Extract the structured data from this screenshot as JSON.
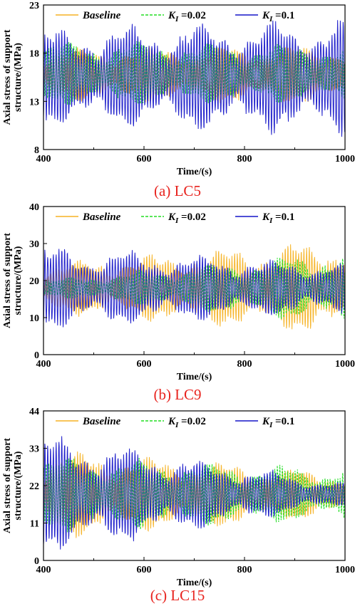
{
  "chart_data": [
    {
      "type": "line",
      "caption": "(a) LC5",
      "xlabel": "Time/(s)",
      "ylabel": [
        "Axial stress of support",
        "structure/(MPa)"
      ],
      "xlim": [
        400,
        1000
      ],
      "ylim": [
        8,
        23
      ],
      "xticks": [
        "400",
        "600",
        "800",
        "1000"
      ],
      "yticks": [
        "8",
        "13",
        "18",
        "23"
      ],
      "legend_position": "top",
      "series": [
        {
          "name": "Baseline",
          "color": "#F5B223",
          "dash": "solid",
          "mean": 15.8,
          "amp_start": 2.5,
          "amp_end": 2.8,
          "period": 5.3,
          "phase": 0.0
        },
        {
          "name": "K_I=0.02",
          "color": "#22DD22",
          "dash": "dashed",
          "mean": 15.9,
          "amp_start": 3.0,
          "amp_end": 2.7,
          "period": 5.0,
          "phase": 1.1
        },
        {
          "name": "K_I=0.1",
          "color": "#1515C8",
          "dash": "solid",
          "mean": 15.5,
          "amp_start": 4.5,
          "amp_end": 5.5,
          "period": 5.6,
          "phase": 2.0
        }
      ]
    },
    {
      "type": "line",
      "caption": "(b) LC9",
      "xlabel": "Time/(s)",
      "ylabel": [
        "Axial stress of support",
        "structure/(MPa)"
      ],
      "xlim": [
        400,
        1000
      ],
      "ylim": [
        0,
        40
      ],
      "xticks": [
        "400",
        "600",
        "800",
        "1000"
      ],
      "yticks": [
        "0",
        "10",
        "20",
        "30",
        "40"
      ],
      "legend_position": "top",
      "series": [
        {
          "name": "Baseline",
          "color": "#F5B223",
          "dash": "solid",
          "mean": 18.0,
          "amp_start": 6.0,
          "amp_end": 12.0,
          "period": 5.3,
          "phase": 0.0
        },
        {
          "name": "K_I=0.02",
          "color": "#22DD22",
          "dash": "dashed",
          "mean": 18.0,
          "amp_start": 2.0,
          "amp_end": 9.0,
          "period": 5.0,
          "phase": 1.1
        },
        {
          "name": "K_I=0.1",
          "color": "#1515C8",
          "dash": "solid",
          "mean": 18.0,
          "amp_start": 10.0,
          "amp_end": 6.0,
          "period": 5.6,
          "phase": 2.0
        }
      ]
    },
    {
      "type": "line",
      "caption": "(c) LC15",
      "xlabel": "Time/(s)",
      "ylabel": [
        "Axial stress of support",
        "structure/(MPa)"
      ],
      "xlim": [
        400,
        1000
      ],
      "ylim": [
        0,
        44
      ],
      "xticks": [
        "400",
        "600",
        "800",
        "1000"
      ],
      "yticks": [
        "0",
        "11",
        "22",
        "33",
        "44"
      ],
      "legend_position": "top",
      "series": [
        {
          "name": "Baseline",
          "color": "#F5B223",
          "dash": "solid",
          "mean": 19.5,
          "amp_start": 12.0,
          "amp_end": 6.0,
          "period": 5.3,
          "phase": 0.0
        },
        {
          "name": "K_I=0.02",
          "color": "#22DD22",
          "dash": "dashed",
          "mean": 19.5,
          "amp_start": 10.0,
          "amp_end": 7.0,
          "period": 5.0,
          "phase": 1.1
        },
        {
          "name": "K_I=0.1",
          "color": "#1515C8",
          "dash": "solid",
          "mean": 19.5,
          "amp_start": 16.0,
          "amp_end": 3.0,
          "period": 5.6,
          "phase": 2.0
        }
      ]
    }
  ]
}
